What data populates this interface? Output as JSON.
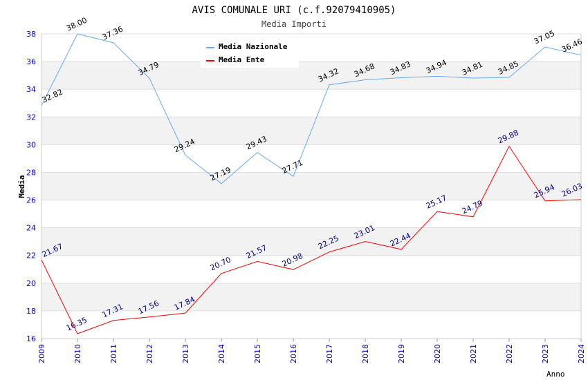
{
  "chart_data": {
    "type": "line",
    "title": "AVIS COMUNALE URI (c.f.92079410905)",
    "subtitle": "Media Importi",
    "xlabel": "Anno",
    "ylabel": "Media",
    "ylim": [
      16,
      38
    ],
    "yticks": [
      "16",
      "18",
      "20",
      "22",
      "24",
      "26",
      "28",
      "30",
      "32",
      "34",
      "36",
      "38"
    ],
    "x": [
      "2009",
      "2010",
      "2011",
      "2012",
      "2013",
      "2014",
      "2015",
      "2016",
      "2017",
      "2018",
      "2019",
      "2020",
      "2021",
      "2022",
      "2023",
      "2024"
    ],
    "legend_position": "top-right",
    "series": [
      {
        "name": "Media Nazionale",
        "color": "#66aaee",
        "label_color": "#000000",
        "values": [
          32.82,
          38.0,
          37.36,
          34.79,
          29.24,
          27.19,
          29.43,
          27.71,
          34.32,
          34.68,
          34.83,
          34.94,
          34.81,
          34.85,
          37.05,
          36.46
        ]
      },
      {
        "name": "Media Ente",
        "color": "#ff0000",
        "label_color": "#000080",
        "values": [
          21.67,
          16.35,
          17.31,
          17.56,
          17.84,
          20.7,
          21.57,
          20.98,
          22.25,
          23.01,
          22.44,
          25.17,
          24.79,
          29.88,
          25.94,
          26.03
        ]
      }
    ]
  }
}
